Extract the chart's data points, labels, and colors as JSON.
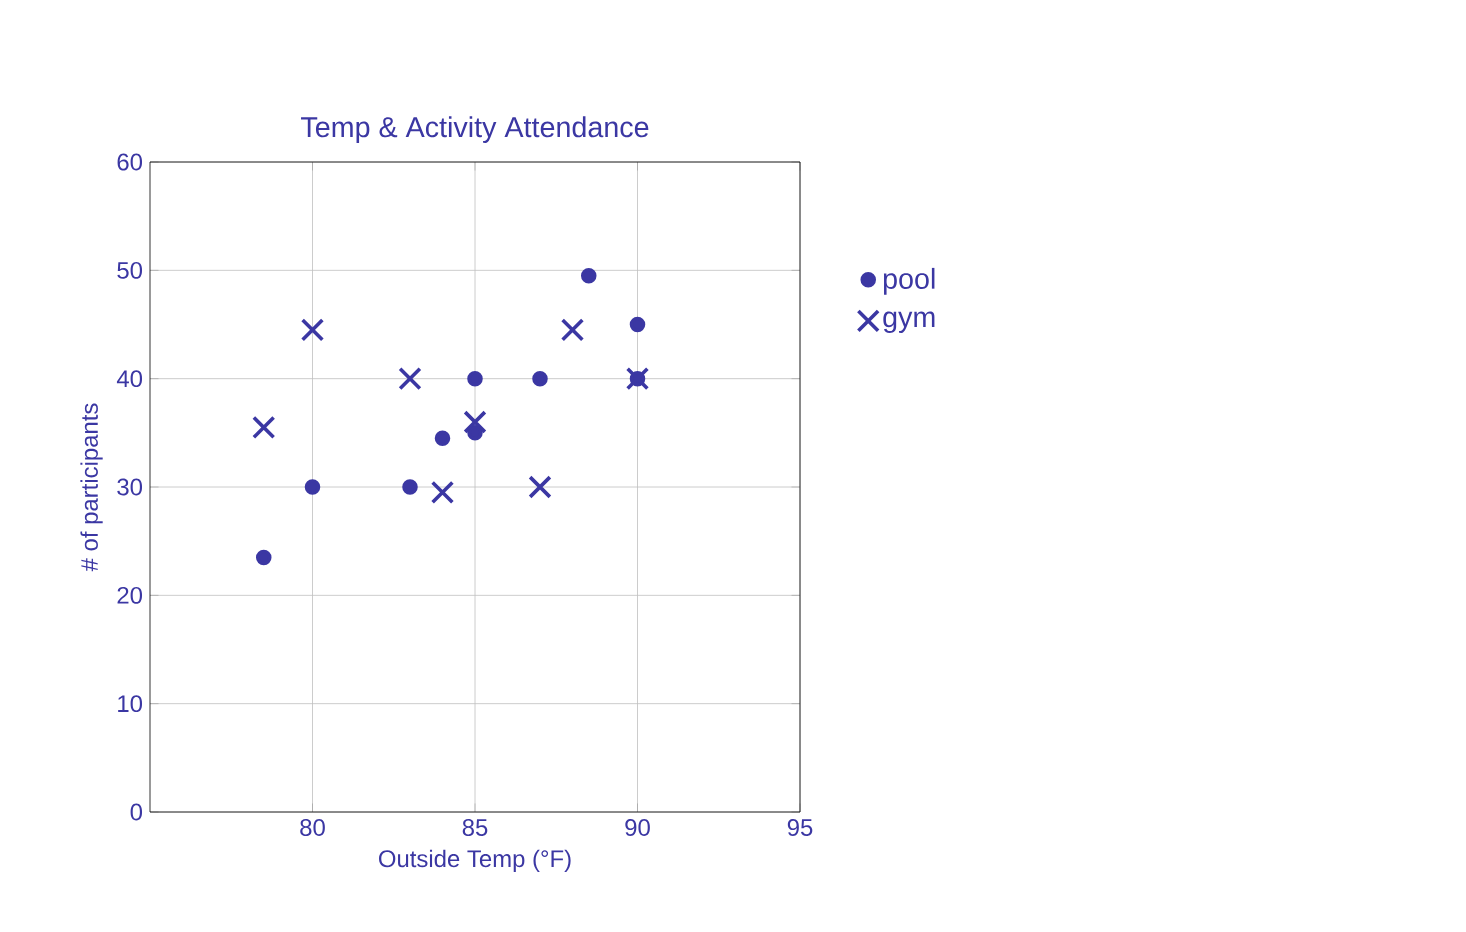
{
  "chart_data": {
    "type": "scatter",
    "title": "Temp & Activity Attendance",
    "xlabel": "Outside Temp (°F)",
    "ylabel": "# of participants",
    "xlim": [
      75,
      95
    ],
    "xticks": [
      80,
      85,
      90,
      95
    ],
    "ylim": [
      0,
      60
    ],
    "yticks": [
      0,
      10,
      20,
      30,
      40,
      50,
      60
    ],
    "grid": true,
    "legend": "right",
    "series": [
      {
        "name": "pool",
        "color": "#3b37a3",
        "marker": "circle",
        "x": [
          78.5,
          80,
          83,
          84,
          85,
          85,
          87,
          88.5,
          90,
          90
        ],
        "values": [
          23.5,
          30,
          30,
          34.5,
          35,
          40,
          40,
          49.5,
          45,
          40
        ]
      },
      {
        "name": "gym",
        "color": "#3b37a3",
        "marker": "cross",
        "x": [
          78.5,
          80,
          83,
          84,
          85,
          87,
          88,
          90
        ],
        "values": [
          35.5,
          44.5,
          40,
          29.5,
          36,
          30,
          44.5,
          40
        ]
      }
    ]
  }
}
